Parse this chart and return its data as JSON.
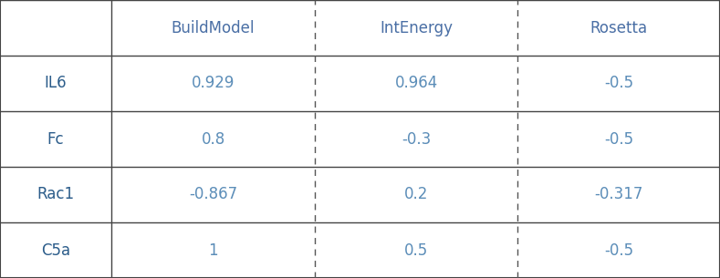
{
  "col_headers": [
    "",
    "BuildModel",
    "IntEnergy",
    "Rosetta"
  ],
  "row_headers": [
    "IL6",
    "Fc",
    "Rac1",
    "C5a"
  ],
  "data": [
    [
      "0.929",
      "0.964",
      "-0.5"
    ],
    [
      "0.8",
      "-0.3",
      "-0.5"
    ],
    [
      "-0.867",
      "0.2",
      "-0.317"
    ],
    [
      "1",
      "0.5",
      "-0.5"
    ]
  ],
  "header_color": "#4a6fa5",
  "row_label_color": "#2b5c8a",
  "data_color": "#5b8db8",
  "bg_color": "#ffffff",
  "border_color": "#444444",
  "dashed_color": "#555555",
  "header_fontsize": 12,
  "data_fontsize": 12,
  "row_label_fontsize": 12
}
